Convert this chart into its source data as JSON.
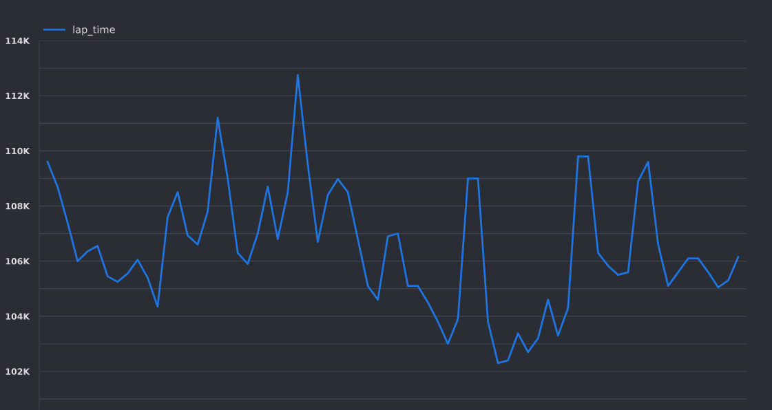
{
  "chart_data": {
    "type": "line",
    "categories": [
      null,
      null,
      null,
      null,
      null,
      null,
      null,
      null,
      null,
      null,
      null,
      null,
      null,
      null,
      null,
      null,
      null,
      null,
      null,
      null,
      null,
      null,
      null,
      null,
      null,
      null,
      null,
      null,
      null,
      null,
      null,
      null,
      null,
      null,
      null,
      null,
      null,
      null,
      null,
      null,
      null,
      null,
      null,
      null,
      null,
      null,
      null,
      null,
      null,
      null,
      null,
      null,
      null,
      null,
      null,
      null,
      null,
      null,
      null,
      null,
      null,
      null,
      null,
      null,
      null,
      null,
      null,
      null,
      null,
      null
    ],
    "series": [
      {
        "name": "lap_time",
        "color": "#1f74e0",
        "values": [
          109600,
          108700,
          107400,
          106000,
          106350,
          106550,
          105450,
          105250,
          105550,
          106050,
          105400,
          104350,
          107600,
          108500,
          106930,
          106600,
          107800,
          111200,
          109000,
          106300,
          105900,
          107000,
          108700,
          106800,
          108500,
          112750,
          109500,
          106700,
          108400,
          108980,
          108500,
          106800,
          105100,
          104600,
          106900,
          107000,
          105100,
          105100,
          104500,
          103800,
          103000,
          103900,
          109000,
          109000,
          103800,
          102300,
          102400,
          103380,
          102700,
          103200,
          104600,
          103300,
          104300,
          109800,
          109800,
          106300,
          105830,
          105500,
          105600,
          108900,
          109600,
          106600,
          105100,
          105600,
          106100,
          106100,
          105600,
          105050,
          105300,
          106150
        ]
      }
    ],
    "ylim": [
      100600,
      114000
    ],
    "yticks": [
      {
        "value": 101000,
        "label": null
      },
      {
        "value": 102000,
        "label": "102K"
      },
      {
        "value": 103000,
        "label": null
      },
      {
        "value": 104000,
        "label": "104K"
      },
      {
        "value": 105000,
        "label": null
      },
      {
        "value": 106000,
        "label": "106K"
      },
      {
        "value": 107000,
        "label": null
      },
      {
        "value": 108000,
        "label": "108K"
      },
      {
        "value": 109000,
        "label": null
      },
      {
        "value": 110000,
        "label": "110K"
      },
      {
        "value": 111000,
        "label": null
      },
      {
        "value": 112000,
        "label": "112K"
      },
      {
        "value": 113000,
        "label": null
      },
      {
        "value": 114000,
        "label": "114K"
      }
    ],
    "grid": "y",
    "legend": "top left",
    "marker": "none",
    "line_style": "solid",
    "tick_labels": "y"
  }
}
